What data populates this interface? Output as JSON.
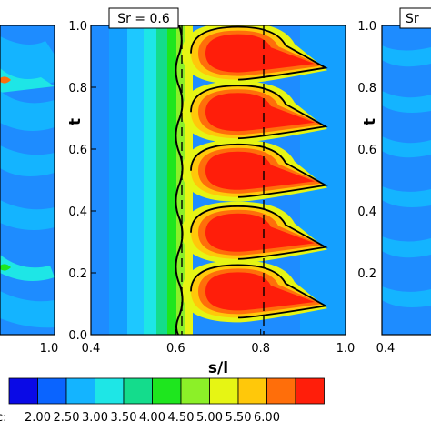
{
  "chart_data": [
    {
      "type": "heatmap",
      "panel": "left",
      "xlabel": "",
      "ylabel": "",
      "xlim": [
        0.4,
        1.0
      ],
      "ylim": [
        0.0,
        1.0
      ],
      "xticks": [
        "1.0"
      ],
      "yticks": []
    },
    {
      "type": "heatmap",
      "panel": "center",
      "annotation": "Sr = 0.6",
      "xlabel": "s/l",
      "ylabel": "t",
      "xlim": [
        0.4,
        1.0
      ],
      "ylim": [
        0.0,
        1.0
      ],
      "xticks": [
        "0.4",
        "0.6",
        "0.8",
        "1.0"
      ],
      "yticks": [
        "0.0",
        "0.2",
        "0.4",
        "0.6",
        "0.8",
        "1.0"
      ],
      "dashed_lines_x": [
        0.6,
        0.8
      ],
      "bubbles": [
        {
          "t": 0.14,
          "value_max": 6.0
        },
        {
          "t": 0.33,
          "value_max": 6.0
        },
        {
          "t": 0.53,
          "value_max": 6.0
        },
        {
          "t": 0.72,
          "value_max": 6.0
        },
        {
          "t": 0.91,
          "value_max": 6.0
        }
      ]
    },
    {
      "type": "heatmap",
      "panel": "right",
      "annotation": "Sr",
      "xlabel": "",
      "ylabel": "t",
      "xlim": [
        0.4,
        1.0
      ],
      "ylim": [
        0.0,
        1.0
      ],
      "xticks": [
        "0.4"
      ],
      "yticks": [
        "0.2",
        "0.4",
        "0.6",
        "0.8",
        "1.0"
      ]
    }
  ],
  "colorbar": {
    "label": "c:",
    "levels": [
      "2.00",
      "2.50",
      "3.00",
      "3.50",
      "4.00",
      "4.50",
      "5.00",
      "5.50",
      "6.00"
    ],
    "colors": [
      "#0a0ae6",
      "#0a64ff",
      "#14b4ff",
      "#1ee6e6",
      "#14dc8c",
      "#1ee61e",
      "#8cf028",
      "#e6f514",
      "#ffc80a",
      "#ff6e0a",
      "#ff1e0a"
    ]
  }
}
